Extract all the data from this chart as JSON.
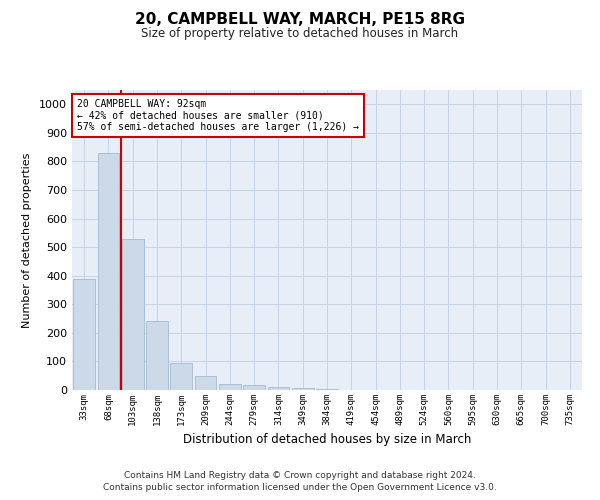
{
  "title_line1": "20, CAMPBELL WAY, MARCH, PE15 8RG",
  "subtitle": "Size of property relative to detached houses in March",
  "xlabel": "Distribution of detached houses by size in March",
  "ylabel": "Number of detached properties",
  "categories": [
    "33sqm",
    "68sqm",
    "103sqm",
    "138sqm",
    "173sqm",
    "209sqm",
    "244sqm",
    "279sqm",
    "314sqm",
    "349sqm",
    "384sqm",
    "419sqm",
    "454sqm",
    "489sqm",
    "524sqm",
    "560sqm",
    "595sqm",
    "630sqm",
    "665sqm",
    "700sqm",
    "735sqm"
  ],
  "values": [
    390,
    830,
    530,
    240,
    95,
    50,
    20,
    17,
    12,
    7,
    5,
    0,
    0,
    0,
    0,
    0,
    0,
    0,
    0,
    0,
    0
  ],
  "bar_color": "#ccd9e8",
  "bar_edge_color": "#9ab0c8",
  "red_line_x": 1.5,
  "annotation_line1": "20 CAMPBELL WAY: 92sqm",
  "annotation_line2": "← 42% of detached houses are smaller (910)",
  "annotation_line3": "57% of semi-detached houses are larger (1,226) →",
  "annotation_box_color": "#ffffff",
  "annotation_box_edge": "#cc0000",
  "grid_color": "#c8d4e4",
  "background_color": "#e8eef8",
  "ylim": [
    0,
    1050
  ],
  "yticks": [
    0,
    100,
    200,
    300,
    400,
    500,
    600,
    700,
    800,
    900,
    1000
  ],
  "footer_line1": "Contains HM Land Registry data © Crown copyright and database right 2024.",
  "footer_line2": "Contains public sector information licensed under the Open Government Licence v3.0.",
  "red_line_color": "#cc0000"
}
